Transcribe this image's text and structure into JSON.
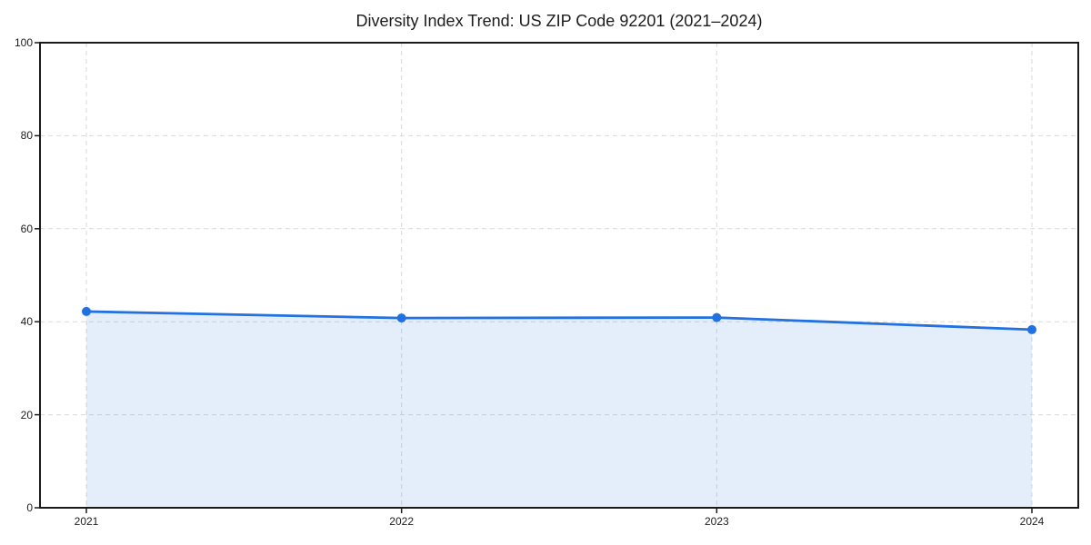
{
  "page": {
    "background": "#ffffff"
  },
  "chart_data": {
    "type": "line",
    "title": "Diversity Index Trend: US ZIP Code 92201 (2021–2024)",
    "series": [
      {
        "name": "Diversity Index",
        "x": [
          2021,
          2022,
          2023,
          2024
        ],
        "values": [
          42.2,
          40.8,
          40.9,
          38.3
        ]
      }
    ],
    "xticklabels": [
      "2021",
      "2022",
      "2023",
      "2024"
    ],
    "yticks": [
      0,
      20,
      40,
      60,
      80,
      100
    ],
    "yticklabels": [
      "0",
      "20",
      "40",
      "60",
      "80",
      "100"
    ],
    "ylim": [
      0,
      100
    ],
    "xlabel": "",
    "ylabel": "",
    "legend": "none",
    "grid": "dashed-both-axes",
    "area_fill": true,
    "marker": "circle",
    "style": {
      "line_color": "#2171e0",
      "marker_color": "#2171e0",
      "fill_color": "#2171e0",
      "fill_opacity": 0.12,
      "grid_color": "#d9d9d9",
      "axis_color": "#1a1a1a",
      "text_color": "#1c1c1c"
    }
  }
}
